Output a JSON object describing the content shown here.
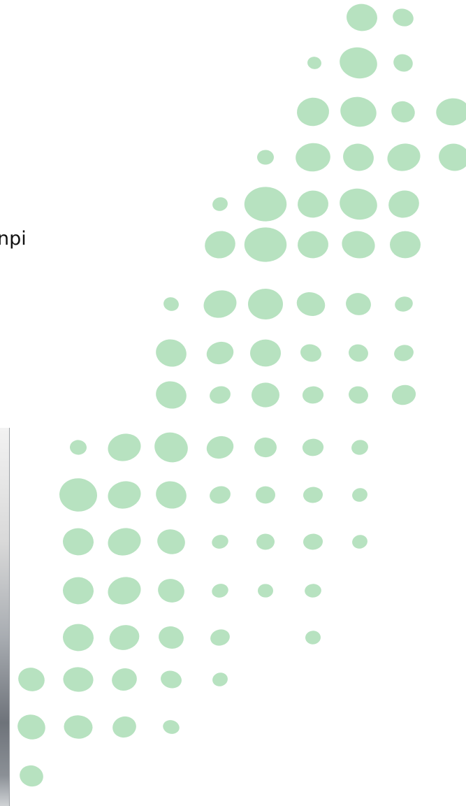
{
  "text": "npi"
}
